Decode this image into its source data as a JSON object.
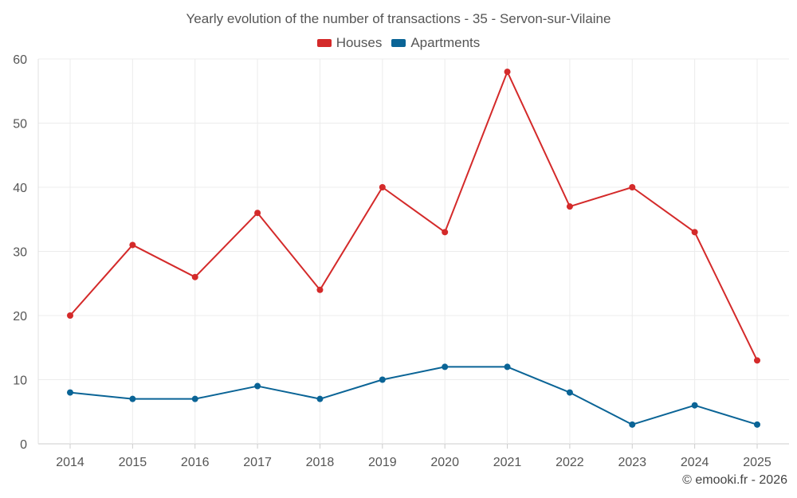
{
  "chart_data": {
    "type": "line",
    "title": "Yearly evolution of the number of transactions - 35 - Servon-sur-Vilaine",
    "xlabel": "",
    "ylabel": "",
    "x": [
      "2014",
      "2015",
      "2016",
      "2017",
      "2018",
      "2019",
      "2020",
      "2021",
      "2022",
      "2023",
      "2024",
      "2025"
    ],
    "ylim": [
      0,
      60
    ],
    "yticks": [
      0,
      10,
      20,
      30,
      40,
      50,
      60
    ],
    "grid": true,
    "legend_position": "top-center",
    "series": [
      {
        "name": "Houses",
        "color": "#d42a2a",
        "values": [
          20,
          31,
          26,
          36,
          24,
          40,
          33,
          58,
          37,
          40,
          33,
          13
        ]
      },
      {
        "name": "Apartments",
        "color": "#0a6496",
        "values": [
          8,
          7,
          7,
          9,
          7,
          10,
          12,
          12,
          8,
          3,
          6,
          3
        ]
      }
    ]
  },
  "credit": "© emooki.fr - 2026"
}
